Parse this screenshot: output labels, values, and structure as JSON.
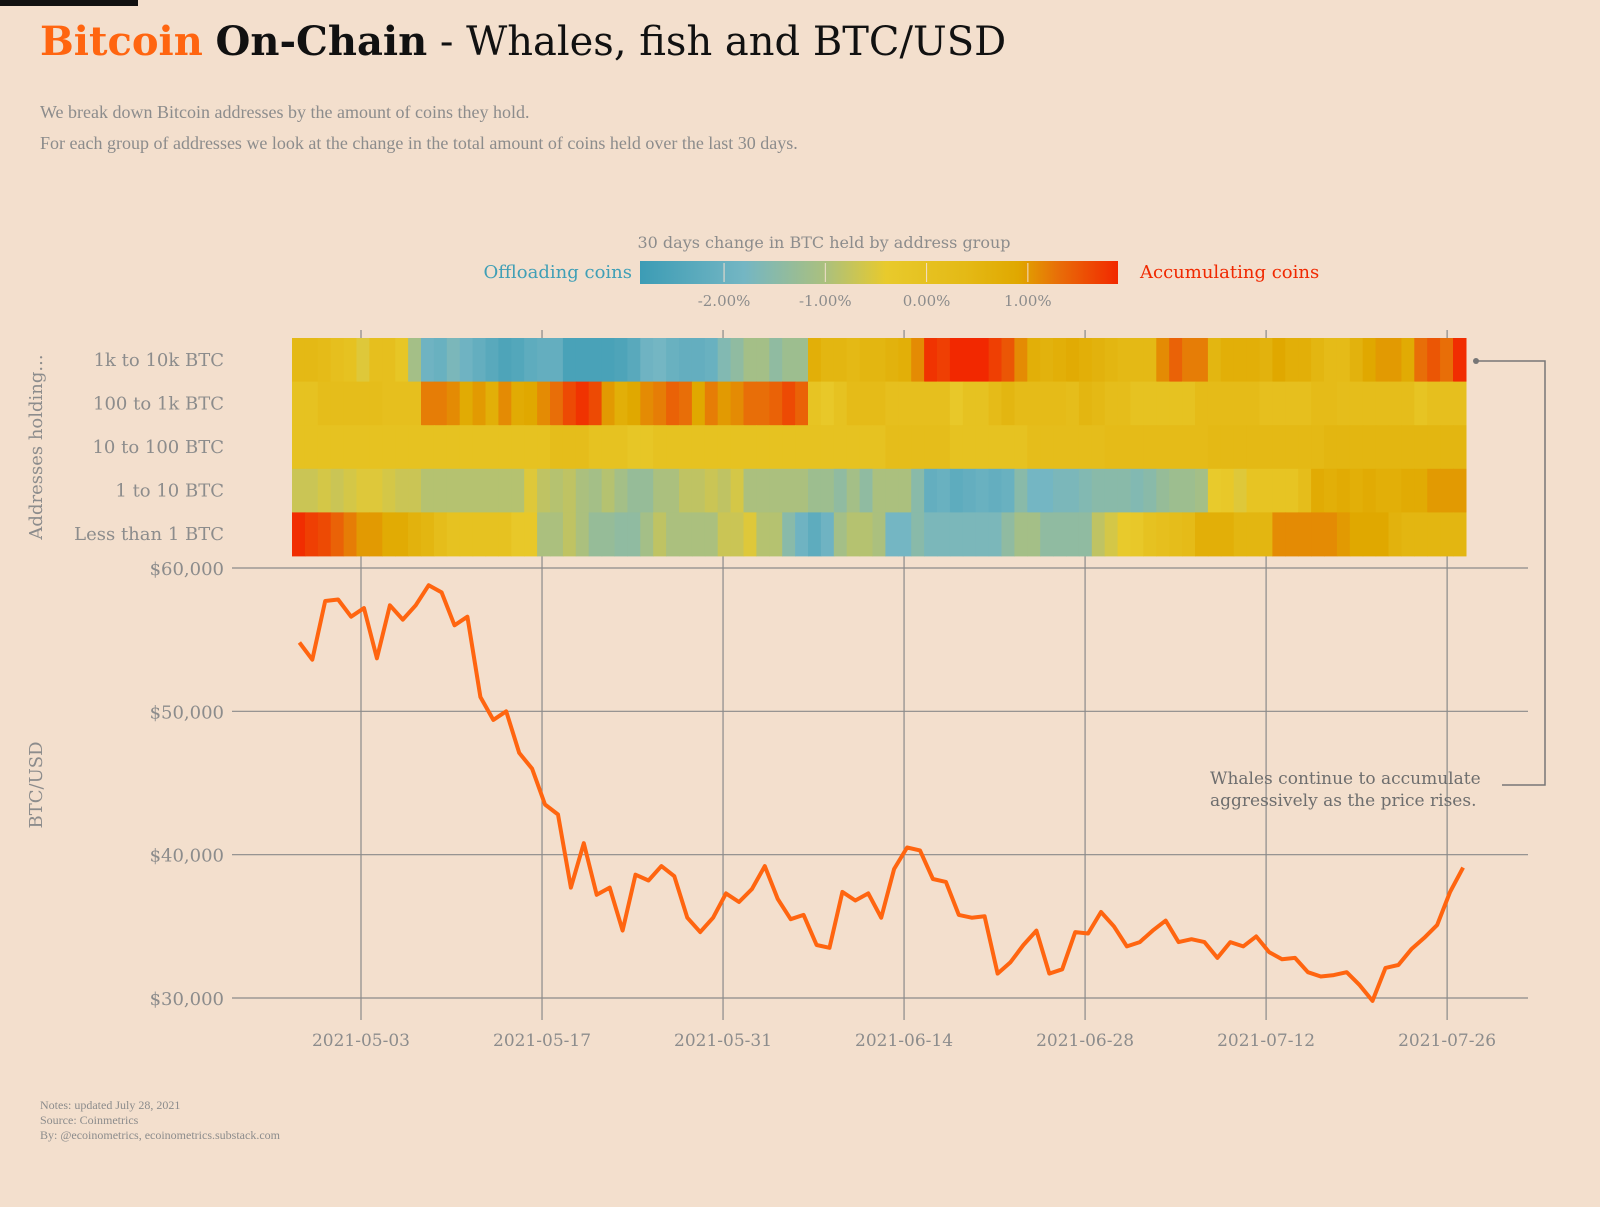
{
  "header": {
    "title_part1": "Bitcoin",
    "title_part2": "On-Chain",
    "title_part3": " - Whales, fish and BTC/USD",
    "subtitle_line1": "We break down Bitcoin addresses by the amount of coins they hold.",
    "subtitle_line2": "For each group of addresses we look at the change in the total amount of coins held over the last 30 days."
  },
  "footer": {
    "notes": "Notes: updated July 28, 2021",
    "source": "Source: Coinmetrics",
    "by": "By: @ecoinometrics, ecoinometrics.substack.com"
  },
  "colors": {
    "background": "#f3dfcd",
    "price_line": "#ff6510",
    "title_accent": "#ff6510",
    "offloading": "#3f9fb6",
    "accumulating": "#f02800"
  },
  "chart_data": [
    {
      "type": "heatmap",
      "legend": {
        "title": "30 days change in BTC held by address group",
        "left_label": "Offloading coins",
        "right_label": "Accumulating coins",
        "ticks": [
          "-2.00%",
          "-1.00%",
          "0.00%",
          "1.00%"
        ],
        "tick_values": [
          -2,
          -1,
          0,
          1
        ],
        "range": [
          -2.83,
          1.89
        ],
        "color_stops": [
          {
            "value": -2.83,
            "color": "#3c9cb5"
          },
          {
            "value": -1.8,
            "color": "#74b6c3"
          },
          {
            "value": -1.0,
            "color": "#abc07e"
          },
          {
            "value": -0.4,
            "color": "#e8ca2c"
          },
          {
            "value": 0.4,
            "color": "#e4b915"
          },
          {
            "value": 0.9,
            "color": "#e0a800"
          },
          {
            "value": 1.3,
            "color": "#e86e08"
          },
          {
            "value": 1.89,
            "color": "#f22800"
          }
        ],
        "placement": "top"
      },
      "ylabel": "Addresses holding...",
      "rows": [
        {
          "label": "1k to 10k BTC",
          "values": [
            0.4,
            0.4,
            0.3,
            0.1,
            0.0,
            -0.5,
            0.1,
            0.1,
            -0.2,
            -1.1,
            -1.9,
            -2.0,
            -1.7,
            -1.9,
            -2.1,
            -2.3,
            -2.5,
            -2.4,
            -2.2,
            -2.1,
            -2.1,
            -2.6,
            -2.6,
            -2.6,
            -2.6,
            -2.5,
            -2.3,
            -1.9,
            -1.8,
            -2.0,
            -2.1,
            -2.1,
            -2.0,
            -1.6,
            -1.4,
            -1.1,
            -1.1,
            -1.4,
            -1.2,
            -1.2,
            0.7,
            0.5,
            0.5,
            0.4,
            0.5,
            0.5,
            0.6,
            0.7,
            1.1,
            1.8,
            1.7,
            1.9,
            1.9,
            1.9,
            1.7,
            1.5,
            1.1,
            0.7,
            0.6,
            0.7,
            0.8,
            0.7,
            0.6,
            0.5,
            0.4,
            0.4,
            0.4,
            1.1,
            1.4,
            1.2,
            1.2,
            0.5,
            0.7,
            0.7,
            0.7,
            0.6,
            0.9,
            0.7,
            0.7,
            0.5,
            0.3,
            0.3,
            0.6,
            0.9,
            1.0,
            1.0,
            0.8,
            1.3,
            1.5,
            1.3,
            1.85
          ]
        },
        {
          "label": "100 to 1k BTC",
          "values": [
            0.0,
            0.0,
            0.2,
            0.2,
            0.2,
            0.2,
            0.2,
            0.1,
            0.1,
            0.1,
            1.2,
            1.2,
            1.1,
            0.8,
            1.0,
            0.7,
            1.1,
            0.8,
            0.9,
            1.1,
            1.3,
            1.6,
            1.8,
            1.6,
            1.0,
            0.7,
            0.9,
            1.1,
            1.2,
            1.4,
            1.3,
            0.9,
            1.2,
            1.0,
            1.1,
            1.3,
            1.3,
            1.4,
            1.6,
            1.4,
            -0.1,
            -0.3,
            0.0,
            0.3,
            0.3,
            0.3,
            0.1,
            0.1,
            0.1,
            0.1,
            0.1,
            -0.3,
            0.0,
            0.0,
            0.3,
            0.5,
            0.3,
            0.3,
            0.3,
            0.3,
            0.2,
            0.5,
            0.4,
            0.2,
            0.2,
            0.0,
            0.0,
            0.0,
            0.0,
            0.0,
            0.3,
            0.3,
            0.3,
            0.3,
            0.3,
            0.1,
            0.1,
            0.1,
            0.1,
            0.3,
            0.3,
            0.2,
            0.2,
            0.2,
            0.2,
            0.2,
            0.2,
            -0.1,
            0.1,
            0.1,
            0.1
          ]
        },
        {
          "label": "10 to 100 BTC",
          "values": [
            0.0,
            0.0,
            0.0,
            0.0,
            0.0,
            0.0,
            0.0,
            0.0,
            0.0,
            0.0,
            0.0,
            0.0,
            0.0,
            0.0,
            0.0,
            0.0,
            0.0,
            0.0,
            0.0,
            0.0,
            0.2,
            0.2,
            0.2,
            0.0,
            0.0,
            0.0,
            -0.2,
            -0.2,
            0.0,
            0.0,
            0.0,
            0.0,
            0.0,
            0.0,
            0.0,
            0.0,
            0.0,
            0.0,
            0.0,
            0.0,
            0.0,
            0.0,
            0.0,
            0.0,
            0.0,
            0.0,
            0.2,
            0.2,
            0.2,
            0.2,
            0.2,
            0.0,
            0.0,
            0.0,
            0.0,
            0.0,
            0.0,
            0.2,
            0.2,
            0.2,
            0.2,
            0.2,
            0.2,
            0.3,
            0.3,
            0.3,
            0.3,
            0.3,
            0.3,
            0.3,
            0.3,
            0.4,
            0.4,
            0.4,
            0.4,
            0.4,
            0.4,
            0.4,
            0.4,
            0.4,
            0.5,
            0.5,
            0.5,
            0.5,
            0.5,
            0.5,
            0.5,
            0.5,
            0.5,
            0.5,
            0.5
          ]
        },
        {
          "label": "1 to 10 BTC",
          "values": [
            -0.7,
            -0.7,
            -0.6,
            -0.7,
            -0.6,
            -0.5,
            -0.5,
            -0.6,
            -0.7,
            -0.7,
            -0.9,
            -0.9,
            -0.9,
            -0.9,
            -0.9,
            -0.9,
            -0.9,
            -0.9,
            -0.5,
            -0.8,
            -0.9,
            -0.8,
            -1.0,
            -1.1,
            -0.9,
            -1.1,
            -1.3,
            -1.3,
            -1.0,
            -1.0,
            -0.8,
            -0.8,
            -0.7,
            -0.8,
            -0.6,
            -1.0,
            -1.0,
            -1.0,
            -1.0,
            -1.0,
            -1.2,
            -1.2,
            -1.4,
            -1.1,
            -1.4,
            -1.0,
            -1.0,
            -1.0,
            -1.5,
            -2.1,
            -2.0,
            -2.2,
            -2.1,
            -2.0,
            -2.1,
            -2.0,
            -1.5,
            -1.8,
            -1.8,
            -1.7,
            -1.7,
            -1.6,
            -1.5,
            -1.5,
            -1.5,
            -1.6,
            -1.5,
            -1.3,
            -1.2,
            -1.2,
            -1.1,
            -0.4,
            -0.3,
            -0.5,
            -0.1,
            -0.1,
            -0.1,
            -0.1,
            0.2,
            0.8,
            0.7,
            0.8,
            0.7,
            0.8,
            0.7,
            0.7,
            0.8,
            0.8,
            1.0,
            1.0,
            1.0
          ]
        },
        {
          "label": "Less than 1 BTC",
          "values": [
            1.85,
            1.7,
            1.6,
            1.4,
            1.2,
            1.0,
            1.0,
            0.8,
            0.8,
            0.6,
            0.5,
            0.2,
            0.0,
            0.0,
            0.0,
            0.0,
            0.0,
            -0.3,
            -0.3,
            -1.0,
            -1.0,
            -0.8,
            -1.0,
            -1.3,
            -1.3,
            -1.4,
            -1.4,
            -1.1,
            -0.8,
            -1.0,
            -1.0,
            -1.0,
            -1.0,
            -0.7,
            -0.7,
            -0.5,
            -0.9,
            -0.9,
            -1.5,
            -1.9,
            -2.2,
            -1.9,
            -1.1,
            -0.9,
            -0.9,
            -1.0,
            -1.8,
            -1.8,
            -1.5,
            -1.7,
            -1.7,
            -1.7,
            -1.7,
            -1.7,
            -1.7,
            -1.4,
            -1.1,
            -1.1,
            -1.4,
            -1.4,
            -1.4,
            -1.4,
            -0.8,
            -0.6,
            -0.4,
            -0.3,
            0.0,
            0.1,
            0.2,
            0.3,
            0.7,
            0.7,
            0.7,
            0.5,
            0.5,
            0.5,
            1.1,
            1.1,
            1.1,
            1.1,
            1.1,
            1.0,
            0.9,
            0.9,
            0.9,
            0.6,
            0.5,
            0.5,
            0.5,
            0.5,
            0.5
          ]
        }
      ]
    },
    {
      "type": "line",
      "ylabel": "BTC/USD",
      "xlabel": "",
      "ylim": [
        30000,
        60000
      ],
      "yticks": [
        30000,
        40000,
        50000,
        60000
      ],
      "ytick_labels": [
        "$30,000",
        "$40,000",
        "$50,000",
        "$60,000"
      ],
      "xticks": [
        "2021-05-03",
        "2021-05-17",
        "2021-05-31",
        "2021-06-14",
        "2021-06-28",
        "2021-07-12",
        "2021-07-26"
      ],
      "grid": true,
      "annotation": {
        "line1": "Whales continue to accumulate",
        "line2": "aggressively as the price rises.",
        "points_to": "1k to 10k BTC"
      },
      "x": [
        "2021-04-28",
        "2021-04-29",
        "2021-04-30",
        "2021-05-01",
        "2021-05-02",
        "2021-05-03",
        "2021-05-04",
        "2021-05-05",
        "2021-05-06",
        "2021-05-07",
        "2021-05-08",
        "2021-05-09",
        "2021-05-10",
        "2021-05-11",
        "2021-05-12",
        "2021-05-13",
        "2021-05-14",
        "2021-05-15",
        "2021-05-16",
        "2021-05-17",
        "2021-05-18",
        "2021-05-19",
        "2021-05-20",
        "2021-05-21",
        "2021-05-22",
        "2021-05-23",
        "2021-05-24",
        "2021-05-25",
        "2021-05-26",
        "2021-05-27",
        "2021-05-28",
        "2021-05-29",
        "2021-05-30",
        "2021-05-31",
        "2021-06-01",
        "2021-06-02",
        "2021-06-03",
        "2021-06-04",
        "2021-06-05",
        "2021-06-06",
        "2021-06-07",
        "2021-06-08",
        "2021-06-09",
        "2021-06-10",
        "2021-06-11",
        "2021-06-12",
        "2021-06-13",
        "2021-06-14",
        "2021-06-15",
        "2021-06-16",
        "2021-06-17",
        "2021-06-18",
        "2021-06-19",
        "2021-06-20",
        "2021-06-21",
        "2021-06-22",
        "2021-06-23",
        "2021-06-24",
        "2021-06-25",
        "2021-06-26",
        "2021-06-27",
        "2021-06-28",
        "2021-06-29",
        "2021-06-30",
        "2021-07-01",
        "2021-07-02",
        "2021-07-03",
        "2021-07-04",
        "2021-07-05",
        "2021-07-06",
        "2021-07-07",
        "2021-07-08",
        "2021-07-09",
        "2021-07-10",
        "2021-07-11",
        "2021-07-12",
        "2021-07-13",
        "2021-07-14",
        "2021-07-15",
        "2021-07-16",
        "2021-07-17",
        "2021-07-18",
        "2021-07-19",
        "2021-07-20",
        "2021-07-21",
        "2021-07-22",
        "2021-07-23",
        "2021-07-24",
        "2021-07-25",
        "2021-07-26",
        "2021-07-27"
      ],
      "values": [
        54800,
        53600,
        57700,
        57800,
        56600,
        57200,
        53700,
        57400,
        56400,
        57400,
        58800,
        58300,
        56000,
        56600,
        51000,
        49400,
        50000,
        47100,
        46000,
        43500,
        42800,
        37700,
        40800,
        37200,
        37700,
        34700,
        38600,
        38200,
        39200,
        38500,
        35600,
        34600,
        35600,
        37300,
        36700,
        37600,
        39200,
        36900,
        35500,
        35800,
        33700,
        33500,
        37400,
        36800,
        37300,
        35600,
        39000,
        40500,
        40300,
        38300,
        38100,
        35800,
        35600,
        35700,
        31700,
        32500,
        33700,
        34700,
        31700,
        32000,
        34600,
        34500,
        36000,
        35000,
        33600,
        33900,
        34700,
        35400,
        33900,
        34100,
        33900,
        32800,
        33900,
        33600,
        34300,
        33200,
        32700,
        32800,
        31800,
        31500,
        31600,
        31800,
        30900,
        29800,
        32100,
        32300,
        33400,
        34200,
        35100,
        37400,
        39100
      ]
    }
  ]
}
